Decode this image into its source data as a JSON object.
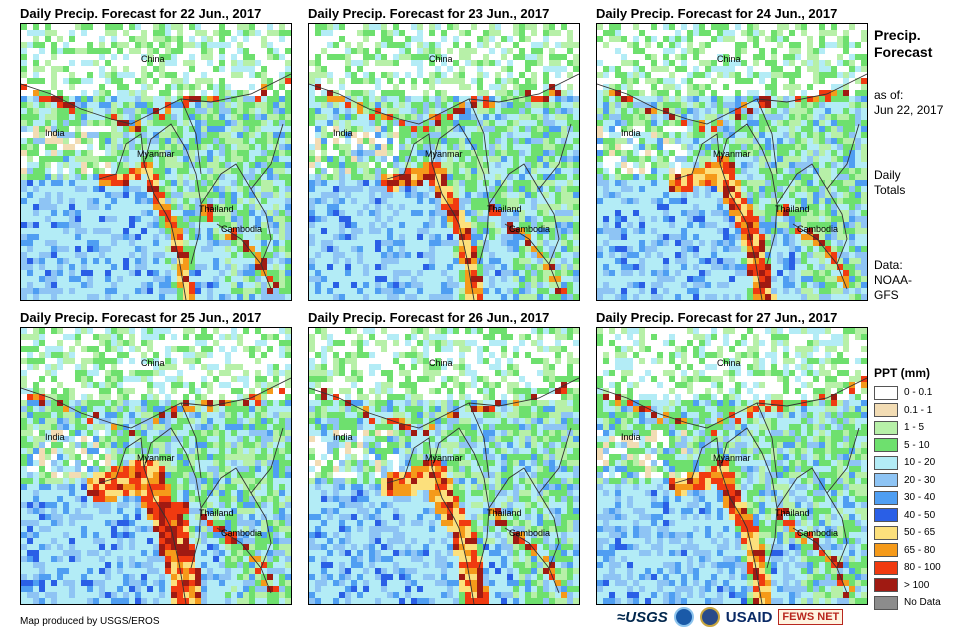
{
  "panels": [
    {
      "title": "Daily Precip. Forecast for 22 Jun., 2017",
      "day_index": 0
    },
    {
      "title": "Daily Precip. Forecast for 23 Jun., 2017",
      "day_index": 1
    },
    {
      "title": "Daily Precip. Forecast for 24 Jun., 2017",
      "day_index": 2
    },
    {
      "title": "Daily Precip. Forecast for 25 Jun., 2017",
      "day_index": 3
    },
    {
      "title": "Daily Precip. Forecast for 26 Jun., 2017",
      "day_index": 4
    },
    {
      "title": "Daily Precip. Forecast for 27 Jun., 2017",
      "day_index": 5
    }
  ],
  "map_labels": {
    "china": "China",
    "india": "India",
    "myanmar": "Myanmar",
    "thailand": "Thailand",
    "cambodia": "Cambodia"
  },
  "side": {
    "title": "Precip. Forecast",
    "as_of_label": "as of:",
    "as_of_date": "Jun 22, 2017",
    "totals": "Daily Totals",
    "data_source": "Data: NOAA-GFS"
  },
  "legend": {
    "title": "PPT (mm)",
    "items": [
      {
        "label": "0 - 0.1",
        "color": "#ffffff"
      },
      {
        "label": "0.1 - 1",
        "color": "#f2dcb4"
      },
      {
        "label": "1 - 5",
        "color": "#b7f0a8"
      },
      {
        "label": "5 - 10",
        "color": "#6ee06e"
      },
      {
        "label": "10 - 20",
        "color": "#b3ecf6"
      },
      {
        "label": "20 - 30",
        "color": "#8ec4f4"
      },
      {
        "label": "30 - 40",
        "color": "#4f9ef2"
      },
      {
        "label": "40 - 50",
        "color": "#2a5fe6"
      },
      {
        "label": "50 - 65",
        "color": "#fce07c"
      },
      {
        "label": "65 - 80",
        "color": "#f59a1a"
      },
      {
        "label": "80 - 100",
        "color": "#f03a10"
      },
      {
        "label": "> 100",
        "color": "#a01a12"
      },
      {
        "label": "No Data",
        "color": "#8c8c8c"
      }
    ]
  },
  "footer": {
    "credit": "Map produced by USGS/EROS"
  },
  "logos": {
    "usgs": "≈USGS",
    "usaid": "USAID",
    "fews": "FEWS NET"
  }
}
